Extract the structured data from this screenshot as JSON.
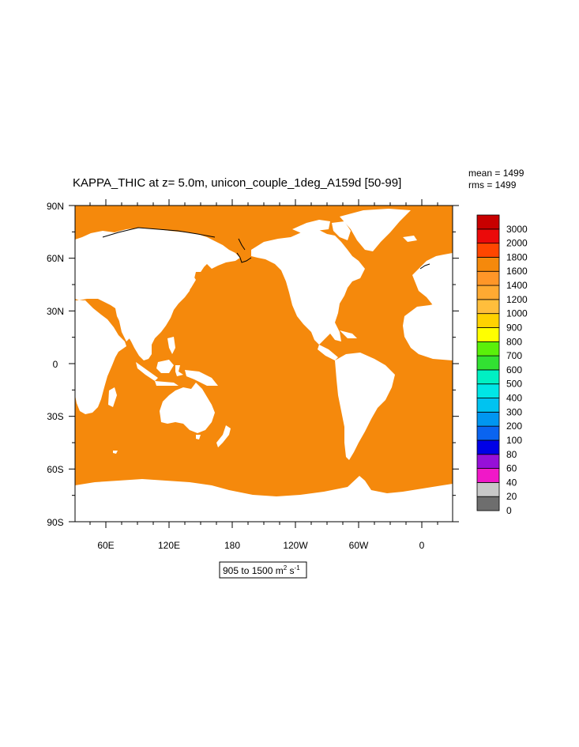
{
  "title": "KAPPA_THIC at z=   5.0m, unicon_couple_1deg_A159d [50-99]",
  "stats": {
    "mean": "mean = 1499",
    "rms": "rms = 1499"
  },
  "range_label": {
    "text": "905 to 1500 m",
    "sup1": "2",
    "mid": " s",
    "sup2": "-1"
  },
  "colors": {
    "ocean": "#F5890C",
    "land": "#FFFFFF",
    "coast": "#000000",
    "seaice_tint": "#F5A030"
  },
  "axes": {
    "lat_ticks": [
      "90N",
      "60N",
      "30N",
      "0",
      "30S",
      "60S",
      "90S"
    ],
    "lon_ticks": [
      "60E",
      "120E",
      "180",
      "120W",
      "60W",
      "0"
    ]
  },
  "colorbar": {
    "colors": [
      "#6E6E6E",
      "#C8C8C8",
      "#F018C8",
      "#9610D8",
      "#0000E6",
      "#0A64F0",
      "#0096F0",
      "#00C3F0",
      "#00E6E6",
      "#00F0C3",
      "#32E132",
      "#5AF00A",
      "#FFFF00",
      "#FFD200",
      "#FFBE3C",
      "#FFAA32",
      "#FF9628",
      "#F5890C",
      "#FF4600",
      "#EB0A0A",
      "#C80000"
    ],
    "labels": [
      "0",
      "20",
      "40",
      "60",
      "80",
      "100",
      "200",
      "300",
      "400",
      "500",
      "600",
      "700",
      "800",
      "900",
      "1000",
      "1200",
      "1400",
      "1600",
      "1800",
      "2000",
      "3000"
    ]
  }
}
